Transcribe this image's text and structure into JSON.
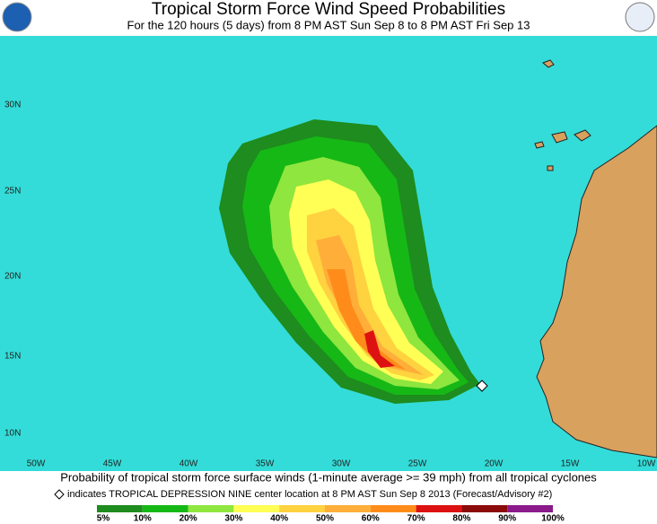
{
  "header": {
    "title": "Tropical Storm Force Wind Speed Probabilities",
    "subtitle": "For the 120 hours (5 days) from 8 PM AST Sun Sep 8 to 8 PM AST Fri Sep 13"
  },
  "map": {
    "lat_labels": [
      "30N",
      "25N",
      "20N",
      "15N",
      "10N"
    ],
    "lon_labels": [
      "50W",
      "45W",
      "40W",
      "35W",
      "30W",
      "25W",
      "20W",
      "15W",
      "10W"
    ]
  },
  "footer": {
    "caption": "Probability of tropical storm force surface winds (1-minute average >= 39 mph) from all tropical cyclones",
    "note": "indicates TROPICAL DEPRESSION NINE center location at 8 PM AST Sun Sep 8 2013 (Forecast/Advisory #2)"
  },
  "legend": {
    "labels": [
      "5%",
      "10%",
      "20%",
      "30%",
      "40%",
      "50%",
      "60%",
      "70%",
      "80%",
      "90%",
      "100%"
    ]
  }
}
